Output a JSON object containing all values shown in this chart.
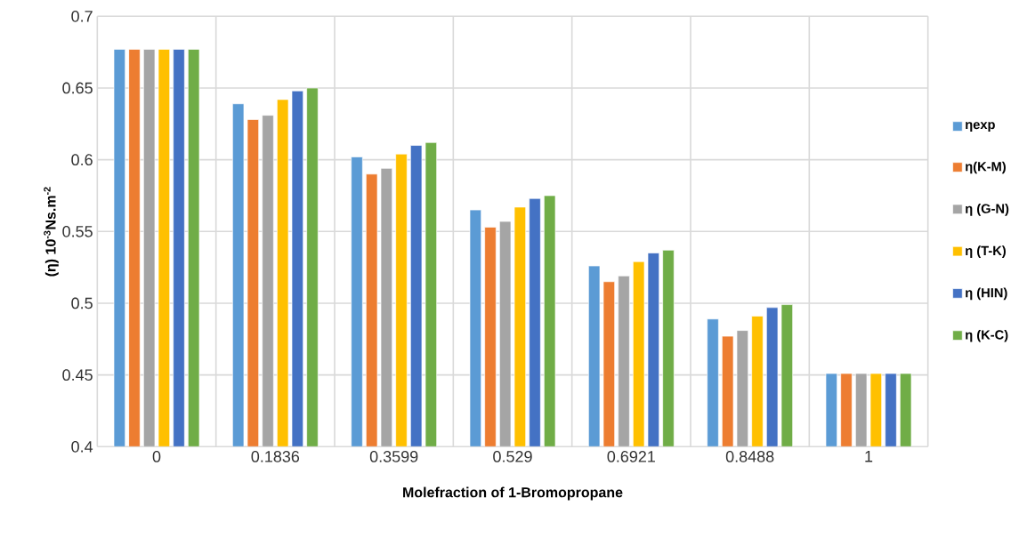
{
  "chart_data": {
    "type": "bar",
    "xlabel": "Molefraction of 1-Bromopropane",
    "ylabel": "(η) 10$^{-3}$Ns.m$^{-2}$",
    "categories": [
      "0",
      "0.1836",
      "0.3599",
      "0.529",
      "0.6921",
      "0.8488",
      "1"
    ],
    "ylim": [
      0.4,
      0.7
    ],
    "yticks": [
      0.4,
      0.45,
      0.5,
      0.55,
      0.6,
      0.65,
      0.7
    ],
    "grid": true,
    "legend": "right",
    "series": [
      {
        "name": "ηexp",
        "color": "#5b9bd5",
        "values": [
          0.677,
          0.639,
          0.602,
          0.565,
          0.526,
          0.489,
          0.451
        ]
      },
      {
        "name": "η(K-M)",
        "color": "#ed7d31",
        "values": [
          0.677,
          0.628,
          0.59,
          0.553,
          0.515,
          0.477,
          0.451
        ]
      },
      {
        "name": "η (G-N)",
        "color": "#a5a5a5",
        "values": [
          0.677,
          0.631,
          0.594,
          0.557,
          0.519,
          0.481,
          0.451
        ]
      },
      {
        "name": "η (T-K)",
        "color": "#ffc000",
        "values": [
          0.677,
          0.642,
          0.604,
          0.567,
          0.529,
          0.491,
          0.451
        ]
      },
      {
        "name": "η (HIN)",
        "color": "#4472c4",
        "values": [
          0.677,
          0.648,
          0.61,
          0.573,
          0.535,
          0.497,
          0.451
        ]
      },
      {
        "name": "η (K-C)",
        "color": "#70ad47",
        "values": [
          0.677,
          0.65,
          0.612,
          0.575,
          0.537,
          0.499,
          0.451
        ]
      }
    ]
  }
}
